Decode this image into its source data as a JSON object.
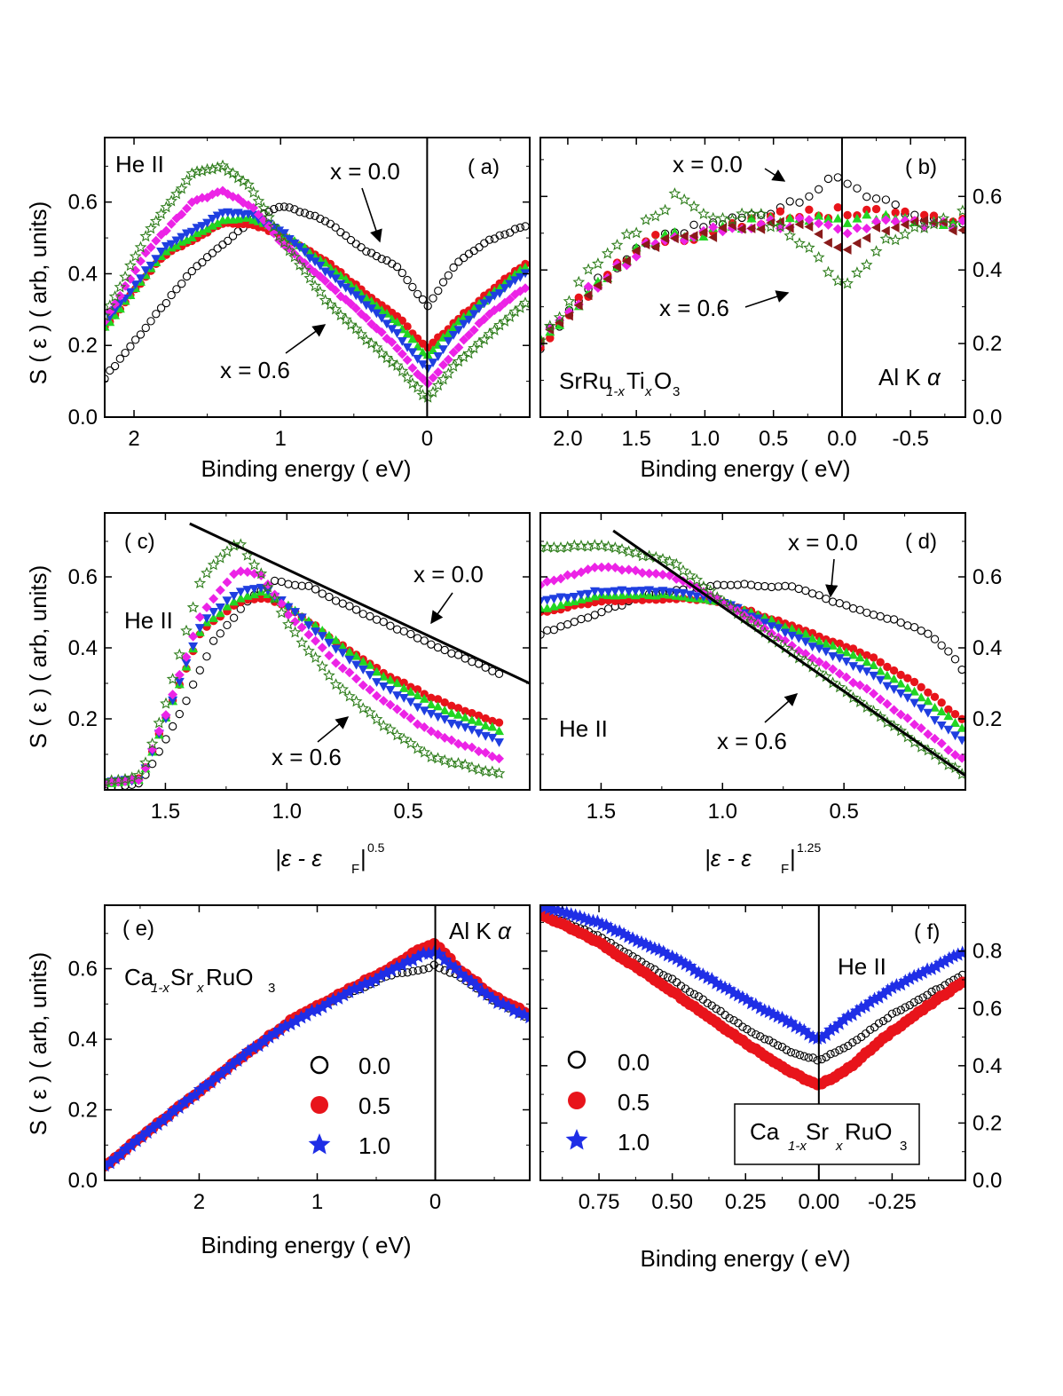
{
  "colors": {
    "x0.0": "#000000",
    "x0.1": "#e8141b",
    "x0.2": "#22d622",
    "x0.3": "#1f3fe0",
    "x0.4": "#ec23e6",
    "x0.5": "#8a1a1a",
    "x0.6": "#2e7d1b",
    "ca0.0": "#000000",
    "ca0.5": "#e8141b",
    "ca1.0": "#1f2ee6"
  },
  "labels": {
    "ylabel_a": "S ( ε )    ( arb, units)",
    "ylabel_c": "S ( ε )    ( arb, units)",
    "ylabel_e": "S ( ε )    ( arb, units)",
    "xlabel_be": "Binding energy  ( eV)",
    "xlabel_c_main": "|ε - ε",
    "xlabel_c_sub": "F",
    "xlabel_c_tail": "|",
    "xlabel_c_sup": "0.5",
    "xlabel_d_sup": "1.25",
    "x00": "x = 0.0",
    "x06": "x = 0.6",
    "heII": "He II",
    "alka_text": "Al K",
    "alka_alpha": "α",
    "sr_a": "SrRu",
    "sr_b": "1-x",
    "sr_c": "Ti",
    "sr_d": "x",
    "sr_e": "O",
    "sr_f": "3",
    "ca_a": "Ca",
    "ca_b": "1-x",
    "ca_c": "Sr",
    "ca_d": "x",
    "ca_e": "RuO",
    "ca_f": "3",
    "pa": "( a)",
    "pb": "( b)",
    "pc": "( c)",
    "pd": "( d)",
    "pe": "( e)",
    "pf": "( f)",
    "leg0": "0.0",
    "leg5": "0.5",
    "leg10": "1.0"
  },
  "chart_data": [
    {
      "panel": "a",
      "type": "scatter",
      "title": "",
      "xlabel": "Binding energy  ( eV)",
      "ylabel": "S ( ε )    ( arb, units)",
      "xlim": [
        2.2,
        -0.7
      ],
      "ylim": [
        0,
        0.78
      ],
      "xticks": [
        2,
        1,
        0
      ],
      "yticks": [
        0.0,
        0.2,
        0.4,
        0.6
      ],
      "series": [
        {
          "name": "x = 0.0",
          "x": [
            2.2,
            1.6,
            1.2,
            1.0,
            0.7,
            0.4,
            0.2,
            0.0,
            -0.2,
            -0.4,
            -0.7
          ],
          "y": [
            0.11,
            0.41,
            0.55,
            0.59,
            0.55,
            0.46,
            0.42,
            0.31,
            0.43,
            0.49,
            0.54
          ]
        },
        {
          "x": [
            2.2,
            1.8,
            1.4,
            1.2,
            1.0,
            0.7,
            0.4,
            0.2,
            0.0,
            -0.2,
            -0.4,
            -0.7
          ],
          "y": [
            0.25,
            0.45,
            0.54,
            0.54,
            0.51,
            0.44,
            0.34,
            0.28,
            0.19,
            0.27,
            0.34,
            0.44
          ]
        },
        {
          "x": [
            2.2,
            1.8,
            1.4,
            1.2,
            1.0,
            0.7,
            0.4,
            0.2,
            0.0,
            -0.2,
            -0.4,
            -0.7
          ],
          "y": [
            0.25,
            0.46,
            0.55,
            0.555,
            0.52,
            0.43,
            0.33,
            0.26,
            0.17,
            0.26,
            0.33,
            0.43
          ]
        },
        {
          "x": [
            2.2,
            1.8,
            1.4,
            1.2,
            1.0,
            0.7,
            0.4,
            0.2,
            0.0,
            -0.2,
            -0.4,
            -0.7
          ],
          "y": [
            0.26,
            0.47,
            0.57,
            0.565,
            0.52,
            0.41,
            0.31,
            0.23,
            0.13,
            0.24,
            0.32,
            0.41
          ]
        },
        {
          "x": [
            2.2,
            1.9,
            1.6,
            1.4,
            1.2,
            1.0,
            0.7,
            0.4,
            0.2,
            0.0,
            -0.2,
            -0.4,
            -0.7
          ],
          "y": [
            0.27,
            0.47,
            0.6,
            0.63,
            0.59,
            0.49,
            0.38,
            0.27,
            0.19,
            0.09,
            0.19,
            0.28,
            0.37
          ]
        },
        {
          "name": "x = 0.6",
          "x": [
            2.2,
            1.9,
            1.6,
            1.4,
            1.2,
            1.0,
            0.7,
            0.4,
            0.2,
            0.0,
            -0.2,
            -0.4,
            -0.7
          ],
          "y": [
            0.28,
            0.52,
            0.68,
            0.7,
            0.64,
            0.5,
            0.33,
            0.21,
            0.14,
            0.05,
            0.15,
            0.22,
            0.33
          ]
        }
      ]
    },
    {
      "panel": "b",
      "type": "scatter",
      "xlabel": "Binding energy  ( eV)",
      "xlim": [
        2.2,
        -0.9
      ],
      "ylim": [
        0,
        0.76
      ],
      "xticks": [
        2.0,
        1.5,
        1.0,
        0.5,
        0.0,
        -0.5
      ],
      "yticks": [
        0.0,
        0.2,
        0.4,
        0.6
      ],
      "series": [
        {
          "name": "x = 0.0",
          "x": [
            2.2,
            1.8,
            1.4,
            1.0,
            0.6,
            0.3,
            0.0,
            -0.3,
            -0.6,
            -0.9
          ],
          "y": [
            0.2,
            0.37,
            0.47,
            0.52,
            0.55,
            0.6,
            0.65,
            0.58,
            0.53,
            0.52
          ]
        },
        {
          "x": [
            2.2,
            1.8,
            1.4,
            1.0,
            0.6,
            0.3,
            0.1,
            0.0,
            -0.1,
            -0.3,
            -0.6,
            -0.9
          ],
          "y": [
            0.2,
            0.36,
            0.48,
            0.5,
            0.53,
            0.56,
            0.55,
            0.56,
            0.55,
            0.56,
            0.54,
            0.53
          ]
        },
        {
          "x": [
            2.2,
            1.8,
            1.4,
            1.0,
            0.6,
            0.3,
            0.0,
            -0.3,
            -0.6,
            -0.9
          ],
          "y": [
            0.2,
            0.36,
            0.48,
            0.5,
            0.53,
            0.54,
            0.54,
            0.54,
            0.53,
            0.53
          ]
        },
        {
          "x": [
            2.2,
            1.8,
            1.4,
            1.0,
            0.6,
            0.3,
            0.0,
            -0.3,
            -0.6,
            -0.9
          ],
          "y": [
            0.2,
            0.36,
            0.47,
            0.5,
            0.52,
            0.53,
            0.5,
            0.53,
            0.52,
            0.52
          ]
        },
        {
          "x": [
            2.2,
            1.8,
            1.4,
            1.0,
            0.6,
            0.3,
            0.0,
            -0.3,
            -0.6,
            -0.9
          ],
          "y": [
            0.2,
            0.36,
            0.47,
            0.5,
            0.52,
            0.52,
            0.45,
            0.52,
            0.52,
            0.52
          ]
        },
        {
          "name": "x = 0.6",
          "x": [
            2.2,
            1.8,
            1.4,
            1.2,
            1.0,
            0.6,
            0.3,
            0.0,
            -0.3,
            -0.6,
            -0.9
          ],
          "y": [
            0.2,
            0.42,
            0.53,
            0.6,
            0.55,
            0.54,
            0.47,
            0.36,
            0.47,
            0.52,
            0.55
          ]
        }
      ]
    },
    {
      "panel": "c",
      "type": "scatter",
      "xlabel": "|ε - εF|^0.5",
      "ylabel": "S ( ε )    ( arb, units)",
      "xlim": [
        1.75,
        0.0
      ],
      "ylim": [
        0,
        0.78
      ],
      "xticks": [
        1.5,
        1.0,
        0.5
      ],
      "yticks": [
        0.2,
        0.4,
        0.6
      ],
      "fit_line": {
        "x": [
          1.4,
          0.0
        ],
        "y": [
          0.75,
          0.3
        ]
      },
      "series": [
        {
          "name": "x = 0.0",
          "x": [
            1.75,
            1.6,
            1.45,
            1.3,
            1.15,
            1.05,
            0.9,
            0.7,
            0.5,
            0.3,
            0.1
          ],
          "y": [
            0.0,
            0.02,
            0.2,
            0.42,
            0.54,
            0.59,
            0.57,
            0.5,
            0.44,
            0.38,
            0.32
          ]
        },
        {
          "x": [
            1.75,
            1.6,
            1.5,
            1.35,
            1.2,
            1.1,
            1.0,
            0.8,
            0.6,
            0.4,
            0.1
          ],
          "y": [
            0.02,
            0.03,
            0.2,
            0.45,
            0.53,
            0.54,
            0.52,
            0.42,
            0.33,
            0.26,
            0.18
          ]
        },
        {
          "x": [
            1.75,
            1.6,
            1.5,
            1.35,
            1.2,
            1.1,
            1.0,
            0.8,
            0.6,
            0.4,
            0.1
          ],
          "y": [
            0.02,
            0.03,
            0.2,
            0.46,
            0.54,
            0.56,
            0.52,
            0.42,
            0.32,
            0.24,
            0.16
          ]
        },
        {
          "x": [
            1.75,
            1.6,
            1.5,
            1.35,
            1.2,
            1.1,
            1.0,
            0.8,
            0.6,
            0.4,
            0.1
          ],
          "y": [
            0.02,
            0.03,
            0.2,
            0.47,
            0.56,
            0.57,
            0.52,
            0.4,
            0.29,
            0.21,
            0.13
          ]
        },
        {
          "x": [
            1.75,
            1.6,
            1.5,
            1.35,
            1.2,
            1.1,
            1.0,
            0.8,
            0.6,
            0.4,
            0.1
          ],
          "y": [
            0.02,
            0.03,
            0.21,
            0.5,
            0.62,
            0.6,
            0.5,
            0.36,
            0.25,
            0.16,
            0.08
          ]
        },
        {
          "name": "x = 0.6",
          "x": [
            1.75,
            1.6,
            1.5,
            1.35,
            1.2,
            1.1,
            1.0,
            0.8,
            0.6,
            0.4,
            0.1
          ],
          "y": [
            0.02,
            0.04,
            0.24,
            0.6,
            0.7,
            0.6,
            0.47,
            0.3,
            0.18,
            0.09,
            0.04
          ]
        }
      ]
    },
    {
      "panel": "d",
      "type": "scatter",
      "xlabel": "|ε - εF|^1.25",
      "xlim": [
        1.75,
        0.0
      ],
      "ylim": [
        0,
        0.78
      ],
      "xticks": [
        1.5,
        1.0,
        0.5
      ],
      "yticks": [
        0.2,
        0.4,
        0.6
      ],
      "fit_line": {
        "x": [
          1.45,
          0.0
        ],
        "y": [
          0.73,
          0.04
        ]
      },
      "series": [
        {
          "name": "x = 0.0",
          "x": [
            1.75,
            1.5,
            1.3,
            1.0,
            0.7,
            0.5,
            0.3,
            0.15,
            0.05,
            0.0
          ],
          "y": [
            0.44,
            0.5,
            0.55,
            0.58,
            0.57,
            0.52,
            0.48,
            0.44,
            0.38,
            0.32
          ]
        },
        {
          "x": [
            1.75,
            1.5,
            1.2,
            1.0,
            0.7,
            0.4,
            0.2,
            0.0
          ],
          "y": [
            0.5,
            0.53,
            0.54,
            0.53,
            0.46,
            0.38,
            0.3,
            0.19
          ]
        },
        {
          "x": [
            1.75,
            1.5,
            1.2,
            1.0,
            0.7,
            0.4,
            0.2,
            0.0
          ],
          "y": [
            0.51,
            0.55,
            0.55,
            0.53,
            0.45,
            0.36,
            0.27,
            0.17
          ]
        },
        {
          "x": [
            1.75,
            1.5,
            1.2,
            1.0,
            0.7,
            0.4,
            0.2,
            0.0
          ],
          "y": [
            0.53,
            0.56,
            0.56,
            0.53,
            0.43,
            0.33,
            0.24,
            0.13
          ]
        },
        {
          "x": [
            1.75,
            1.5,
            1.2,
            1.0,
            0.7,
            0.4,
            0.2,
            0.0
          ],
          "y": [
            0.58,
            0.63,
            0.6,
            0.53,
            0.4,
            0.28,
            0.18,
            0.08
          ]
        },
        {
          "name": "x = 0.6",
          "x": [
            1.75,
            1.5,
            1.2,
            1.0,
            0.7,
            0.4,
            0.2,
            0.0
          ],
          "y": [
            0.68,
            0.69,
            0.64,
            0.53,
            0.38,
            0.23,
            0.13,
            0.04
          ]
        }
      ]
    },
    {
      "panel": "e",
      "type": "scatter",
      "xlabel": "Binding energy  ( eV)",
      "ylabel": "S ( ε )    ( arb, units)",
      "xlim": [
        2.8,
        -0.8
      ],
      "ylim": [
        0,
        0.78
      ],
      "xticks": [
        2,
        1,
        0
      ],
      "yticks": [
        0.0,
        0.2,
        0.4,
        0.6
      ],
      "series": [
        {
          "name": "0.0",
          "x": [
            2.8,
            2.2,
            1.6,
            1.2,
            0.8,
            0.4,
            0.1,
            0.0,
            -0.2,
            -0.5,
            -0.8
          ],
          "y": [
            0.04,
            0.2,
            0.36,
            0.46,
            0.52,
            0.58,
            0.6,
            0.61,
            0.58,
            0.51,
            0.46
          ]
        },
        {
          "name": "0.5",
          "x": [
            2.8,
            2.2,
            1.6,
            1.2,
            0.8,
            0.4,
            0.1,
            0.0,
            -0.2,
            -0.5,
            -0.8
          ],
          "y": [
            0.04,
            0.2,
            0.36,
            0.46,
            0.53,
            0.6,
            0.66,
            0.67,
            0.6,
            0.52,
            0.47
          ]
        },
        {
          "name": "1.0",
          "x": [
            2.8,
            2.2,
            1.6,
            1.2,
            0.8,
            0.4,
            0.1,
            0.0,
            -0.2,
            -0.5,
            -0.8
          ],
          "y": [
            0.04,
            0.2,
            0.36,
            0.45,
            0.52,
            0.59,
            0.64,
            0.65,
            0.59,
            0.51,
            0.46
          ]
        }
      ]
    },
    {
      "panel": "f",
      "type": "scatter",
      "xlabel": "Binding energy  ( eV)",
      "xlim": [
        0.95,
        -0.5
      ],
      "ylim": [
        0,
        0.96
      ],
      "xticks": [
        0.75,
        0.5,
        0.25,
        0.0,
        -0.25
      ],
      "yticks": [
        0.0,
        0.2,
        0.4,
        0.6,
        0.8
      ],
      "series": [
        {
          "name": "0.0",
          "x": [
            0.95,
            0.75,
            0.5,
            0.25,
            0.1,
            0.0,
            -0.1,
            -0.25,
            -0.5
          ],
          "y": [
            0.94,
            0.85,
            0.7,
            0.53,
            0.45,
            0.42,
            0.47,
            0.58,
            0.72
          ]
        },
        {
          "name": "0.5",
          "x": [
            0.95,
            0.75,
            0.5,
            0.25,
            0.1,
            0.0,
            -0.1,
            -0.25,
            -0.5
          ],
          "y": [
            0.93,
            0.83,
            0.66,
            0.48,
            0.38,
            0.33,
            0.39,
            0.52,
            0.7
          ]
        },
        {
          "name": "1.0",
          "x": [
            0.95,
            0.75,
            0.5,
            0.25,
            0.1,
            0.0,
            -0.1,
            -0.25,
            -0.5
          ],
          "y": [
            0.96,
            0.9,
            0.78,
            0.63,
            0.55,
            0.49,
            0.57,
            0.67,
            0.8
          ]
        }
      ]
    }
  ]
}
